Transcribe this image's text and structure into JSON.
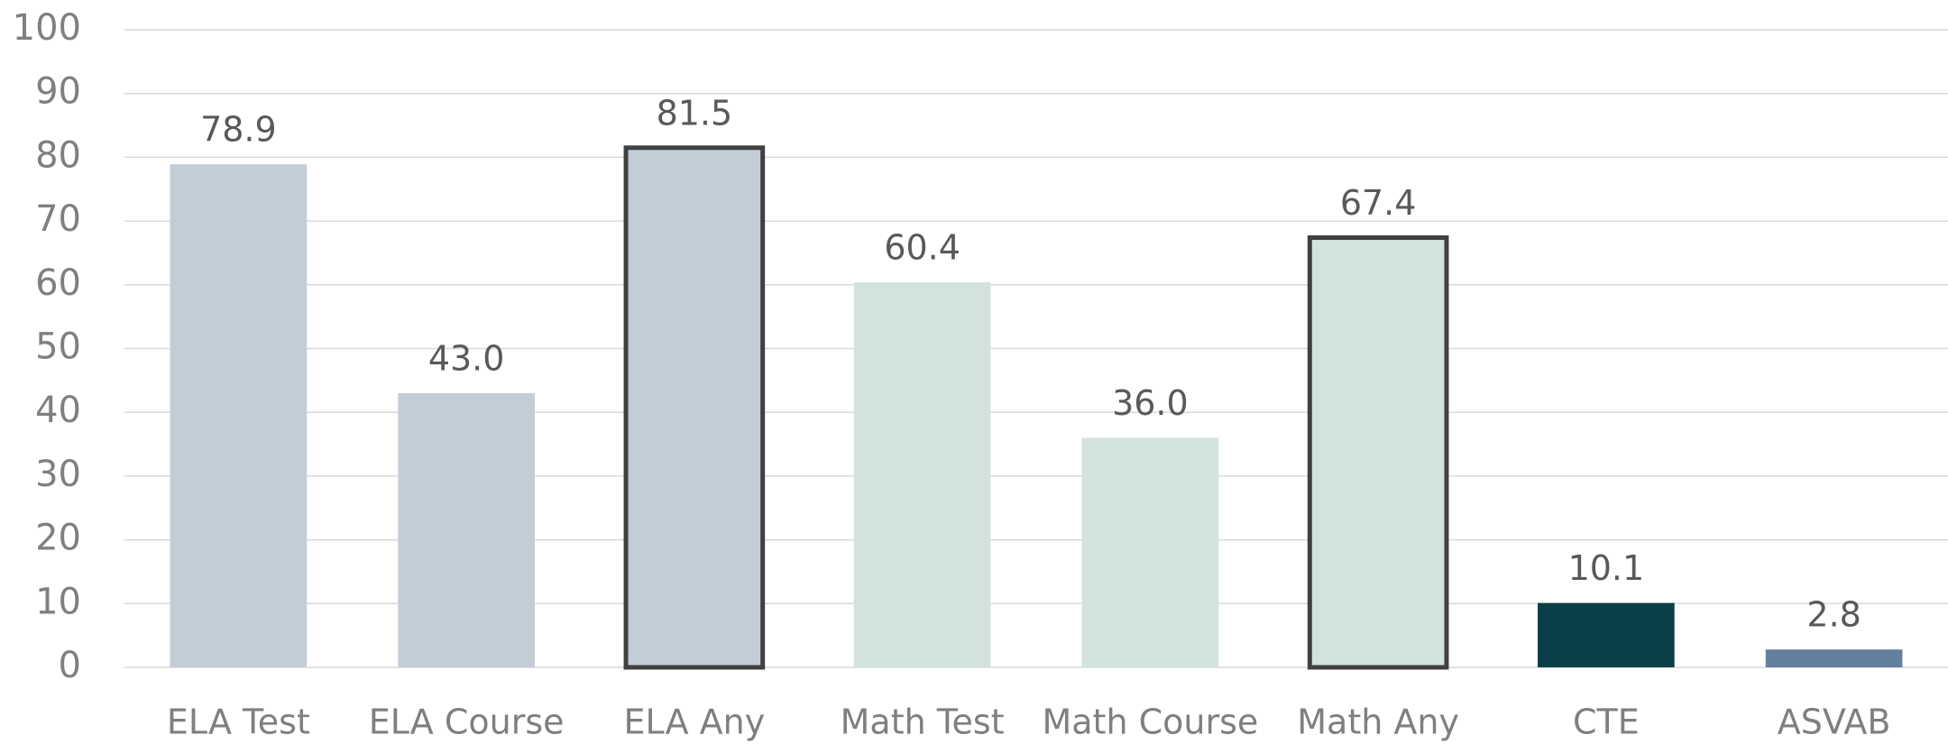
{
  "chart_data": {
    "type": "bar",
    "categories": [
      "ELA Test",
      "ELA Course",
      "ELA Any",
      "Math Test",
      "Math Course",
      "Math Any",
      "CTE",
      "ASVAB"
    ],
    "values": [
      78.9,
      43.0,
      81.5,
      60.4,
      36.0,
      67.4,
      10.1,
      2.8
    ],
    "value_labels": [
      "78.9",
      "43.0",
      "81.5",
      "60.4",
      "36.0",
      "67.4",
      "10.1",
      "2.8"
    ],
    "colors": [
      "#c3cdd8",
      "#c3cdd8",
      "#c3cdd8",
      "#d2e2df",
      "#d2e2df",
      "#d2e2df",
      "#0b3f47",
      "#64809e"
    ],
    "outlined": [
      false,
      false,
      true,
      false,
      false,
      true,
      false,
      false
    ],
    "outline_color": "#404040",
    "ylim": [
      0,
      100
    ],
    "yticks": [
      0,
      10,
      20,
      30,
      40,
      50,
      60,
      70,
      80,
      90,
      100
    ],
    "grid": true
  }
}
